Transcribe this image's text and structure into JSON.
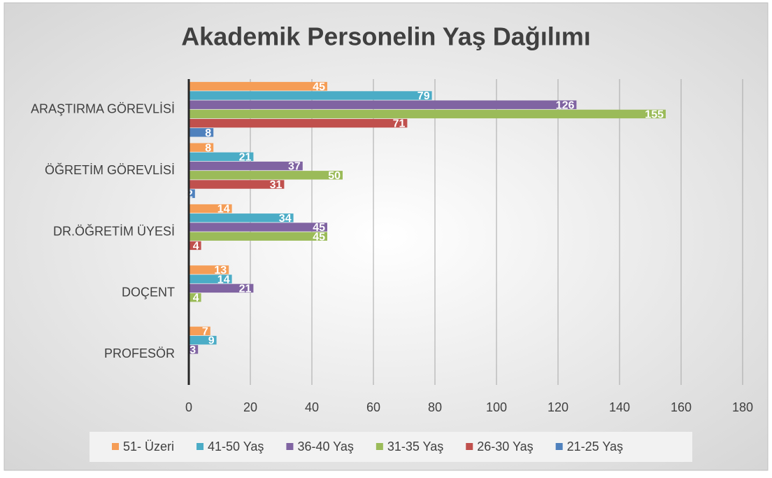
{
  "chart_data": {
    "type": "hbar",
    "title": "Akademik Personelin Yaş Dağılımı",
    "categories": [
      "ARAŞTIRMA GÖREVLİSİ",
      "ÖĞRETİM GÖREVLİSİ",
      "DR.ÖĞRETİM ÜYESİ",
      "DOÇENT",
      "PROFESÖR"
    ],
    "series": [
      {
        "name": "51- Üzeri",
        "color": "#f59d56",
        "values": [
          45,
          8,
          14,
          13,
          7
        ]
      },
      {
        "name": "41-50 Yaş",
        "color": "#4bacc6",
        "values": [
          79,
          21,
          34,
          14,
          9
        ]
      },
      {
        "name": "36-40 Yaş",
        "color": "#8064a2",
        "values": [
          126,
          37,
          45,
          21,
          3
        ]
      },
      {
        "name": "31-35 Yaş",
        "color": "#9bbb59",
        "values": [
          155,
          50,
          45,
          4,
          null
        ]
      },
      {
        "name": "26-30 Yaş",
        "color": "#c0504d",
        "values": [
          71,
          31,
          4,
          null,
          null
        ]
      },
      {
        "name": "21-25 Yaş",
        "color": "#4f81bd",
        "values": [
          8,
          2,
          null,
          null,
          null
        ]
      }
    ],
    "xlim": [
      0,
      180
    ],
    "xticks": [
      0,
      20,
      40,
      60,
      80,
      100,
      120,
      140,
      160,
      180
    ],
    "grid": true,
    "legend": "bottom"
  }
}
